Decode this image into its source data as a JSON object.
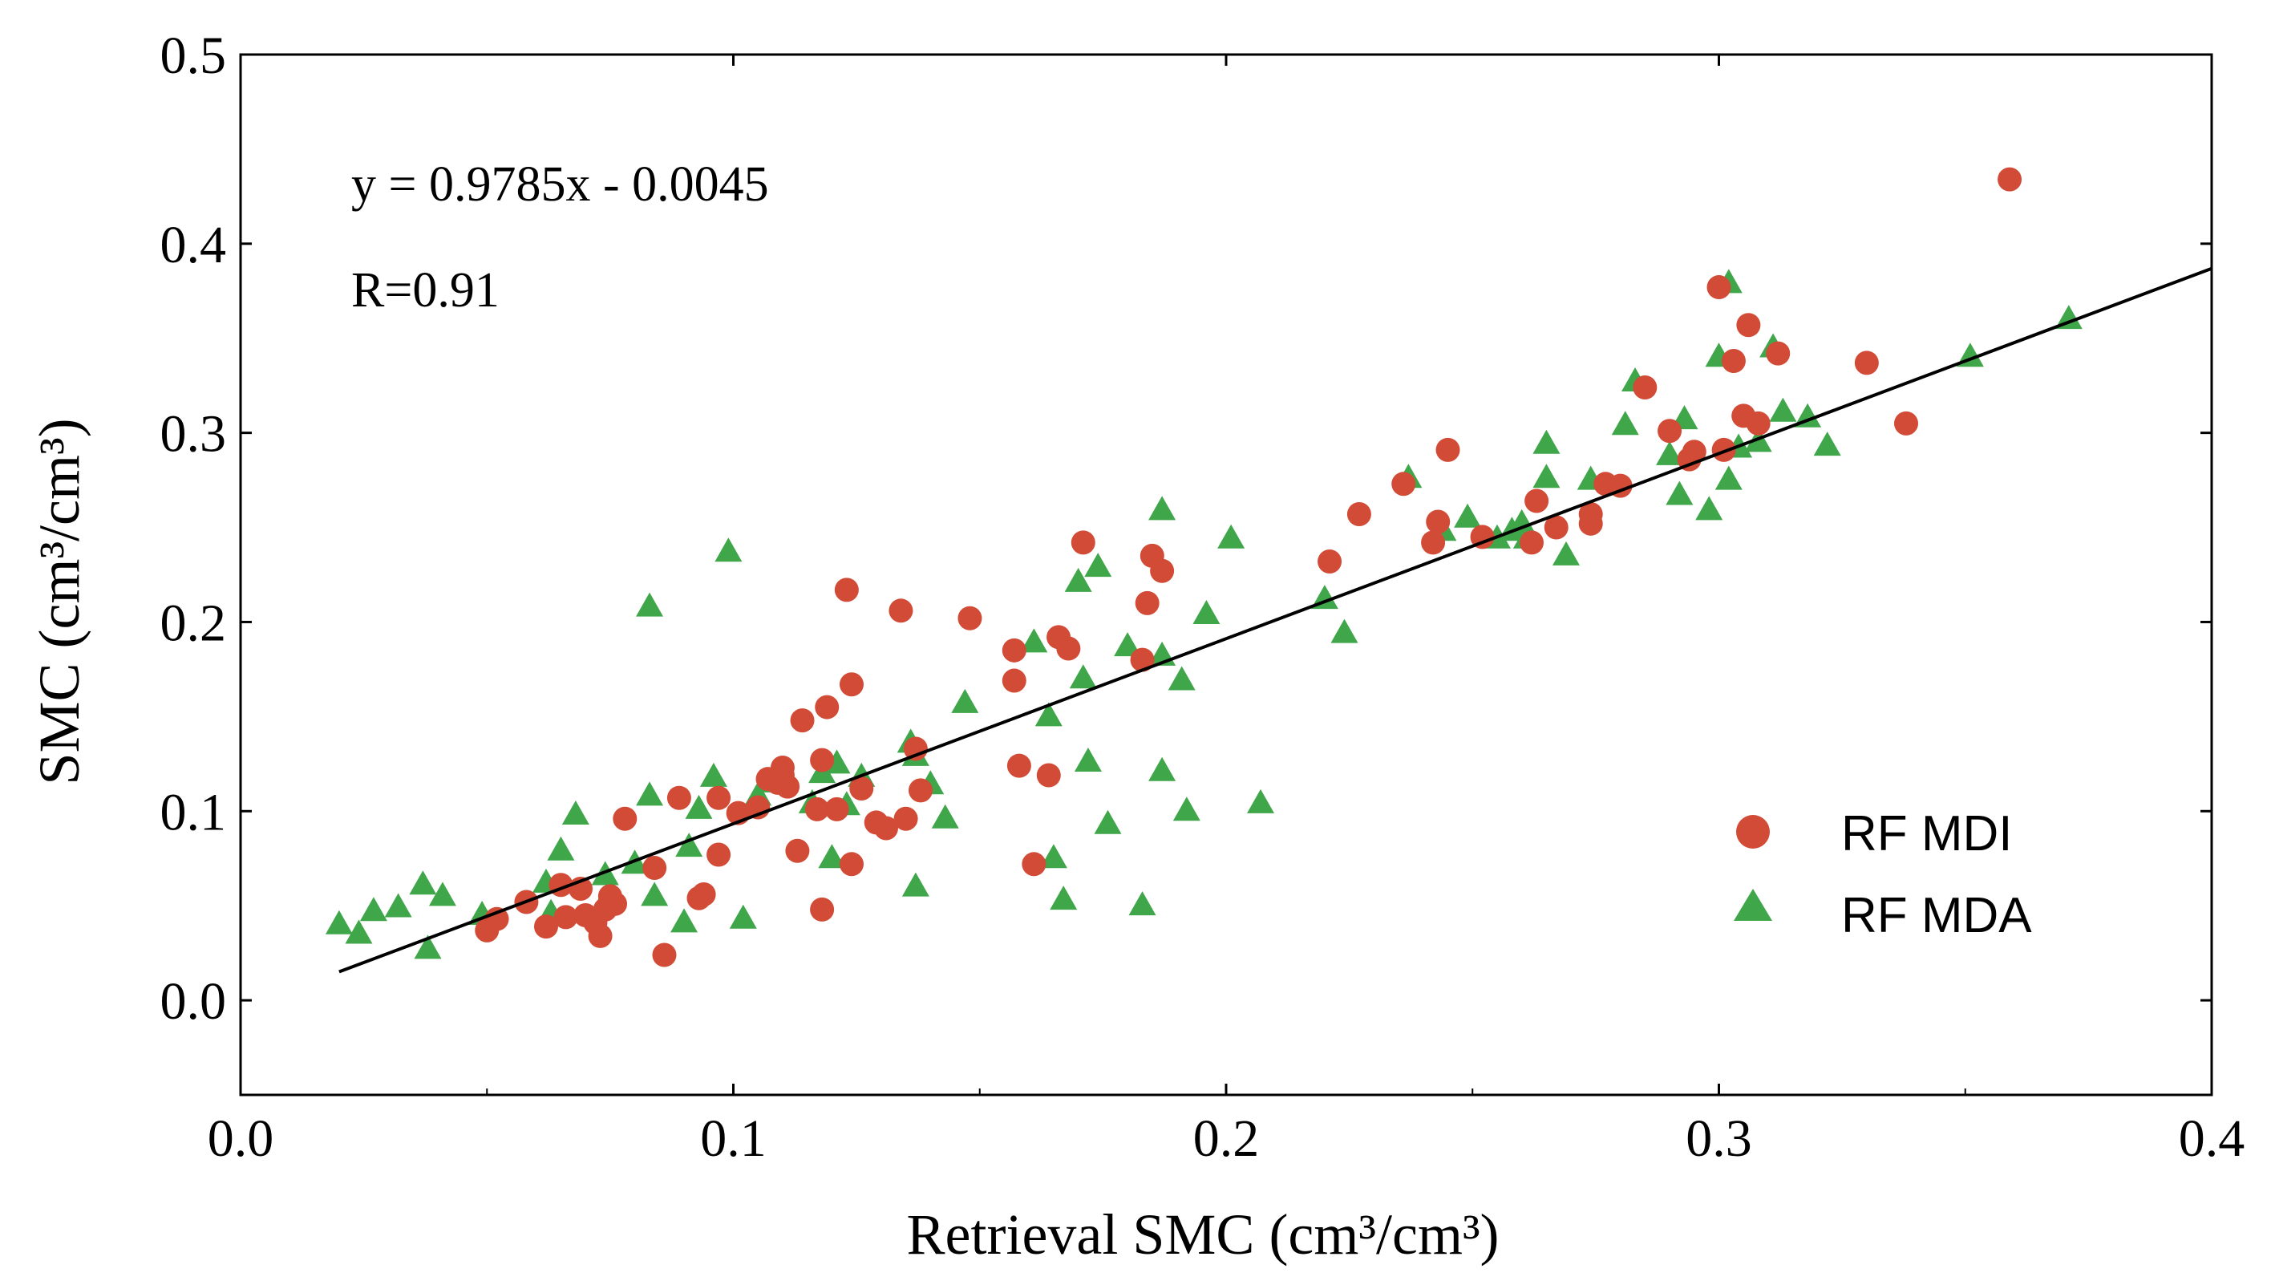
{
  "chart_data": {
    "type": "scatter",
    "title": "",
    "xlabel": "Retrieval SMC (cm³/cm³)",
    "ylabel": "SMC (cm³/cm³)",
    "xlim": [
      0.0,
      0.4
    ],
    "ylim": [
      -0.05,
      0.5
    ],
    "xticks": [
      0.0,
      0.1,
      0.2,
      0.3,
      0.4
    ],
    "yticks": [
      0.0,
      0.1,
      0.2,
      0.3,
      0.4,
      0.5
    ],
    "xtick_labels": [
      "0.0",
      "0.1",
      "0.2",
      "0.3",
      "0.4"
    ],
    "ytick_labels": [
      "0.0",
      "0.1",
      "0.2",
      "0.3",
      "0.4",
      "0.5"
    ],
    "grid": false,
    "legend_position": "bottom-right",
    "annotations": {
      "equation": "y = 0.9785x - 0.0045",
      "r_value": "R=0.91"
    },
    "fit_line": {
      "slope": 0.9785,
      "intercept": -0.0045,
      "x_range": [
        0.02,
        0.4
      ],
      "color": "#000000"
    },
    "series": [
      {
        "name": "RF MDI",
        "marker": "circle",
        "color": "#d24b36",
        "points": [
          [
            0.05,
            0.037
          ],
          [
            0.052,
            0.043
          ],
          [
            0.058,
            0.052
          ],
          [
            0.062,
            0.039
          ],
          [
            0.065,
            0.061
          ],
          [
            0.066,
            0.044
          ],
          [
            0.069,
            0.059
          ],
          [
            0.07,
            0.045
          ],
          [
            0.072,
            0.041
          ],
          [
            0.073,
            0.034
          ],
          [
            0.074,
            0.048
          ],
          [
            0.075,
            0.055
          ],
          [
            0.076,
            0.051
          ],
          [
            0.078,
            0.096
          ],
          [
            0.084,
            0.07
          ],
          [
            0.086,
            0.024
          ],
          [
            0.089,
            0.107
          ],
          [
            0.093,
            0.054
          ],
          [
            0.094,
            0.056
          ],
          [
            0.097,
            0.077
          ],
          [
            0.097,
            0.107
          ],
          [
            0.101,
            0.099
          ],
          [
            0.105,
            0.102
          ],
          [
            0.107,
            0.117
          ],
          [
            0.109,
            0.115
          ],
          [
            0.11,
            0.119
          ],
          [
            0.11,
            0.123
          ],
          [
            0.111,
            0.113
          ],
          [
            0.113,
            0.079
          ],
          [
            0.114,
            0.148
          ],
          [
            0.117,
            0.101
          ],
          [
            0.118,
            0.127
          ],
          [
            0.118,
            0.048
          ],
          [
            0.119,
            0.155
          ],
          [
            0.121,
            0.101
          ],
          [
            0.123,
            0.217
          ],
          [
            0.124,
            0.072
          ],
          [
            0.124,
            0.167
          ],
          [
            0.126,
            0.112
          ],
          [
            0.129,
            0.094
          ],
          [
            0.131,
            0.091
          ],
          [
            0.134,
            0.206
          ],
          [
            0.135,
            0.096
          ],
          [
            0.137,
            0.133
          ],
          [
            0.138,
            0.111
          ],
          [
            0.148,
            0.202
          ],
          [
            0.157,
            0.169
          ],
          [
            0.157,
            0.185
          ],
          [
            0.158,
            0.124
          ],
          [
            0.161,
            0.072
          ],
          [
            0.164,
            0.119
          ],
          [
            0.166,
            0.192
          ],
          [
            0.168,
            0.186
          ],
          [
            0.171,
            0.242
          ],
          [
            0.183,
            0.18
          ],
          [
            0.184,
            0.21
          ],
          [
            0.185,
            0.235
          ],
          [
            0.187,
            0.227
          ],
          [
            0.221,
            0.232
          ],
          [
            0.227,
            0.257
          ],
          [
            0.236,
            0.273
          ],
          [
            0.242,
            0.242
          ],
          [
            0.243,
            0.253
          ],
          [
            0.245,
            0.291
          ],
          [
            0.252,
            0.245
          ],
          [
            0.262,
            0.242
          ],
          [
            0.263,
            0.264
          ],
          [
            0.267,
            0.25
          ],
          [
            0.274,
            0.252
          ],
          [
            0.274,
            0.257
          ],
          [
            0.277,
            0.273
          ],
          [
            0.28,
            0.272
          ],
          [
            0.285,
            0.324
          ],
          [
            0.29,
            0.301
          ],
          [
            0.294,
            0.286
          ],
          [
            0.295,
            0.29
          ],
          [
            0.3,
            0.377
          ],
          [
            0.301,
            0.291
          ],
          [
            0.303,
            0.338
          ],
          [
            0.305,
            0.309
          ],
          [
            0.306,
            0.357
          ],
          [
            0.308,
            0.305
          ],
          [
            0.312,
            0.342
          ],
          [
            0.33,
            0.337
          ],
          [
            0.338,
            0.305
          ],
          [
            0.359,
            0.434
          ]
        ]
      },
      {
        "name": "RF MDA",
        "marker": "triangle",
        "color": "#3fa64a",
        "points": [
          [
            0.02,
            0.04
          ],
          [
            0.024,
            0.035
          ],
          [
            0.027,
            0.047
          ],
          [
            0.032,
            0.049
          ],
          [
            0.037,
            0.061
          ],
          [
            0.038,
            0.027
          ],
          [
            0.041,
            0.055
          ],
          [
            0.049,
            0.045
          ],
          [
            0.062,
            0.062
          ],
          [
            0.063,
            0.046
          ],
          [
            0.065,
            0.079
          ],
          [
            0.068,
            0.098
          ],
          [
            0.074,
            0.066
          ],
          [
            0.075,
            0.057
          ],
          [
            0.08,
            0.072
          ],
          [
            0.083,
            0.108
          ],
          [
            0.083,
            0.208
          ],
          [
            0.084,
            0.055
          ],
          [
            0.09,
            0.041
          ],
          [
            0.091,
            0.081
          ],
          [
            0.093,
            0.101
          ],
          [
            0.096,
            0.118
          ],
          [
            0.099,
            0.237
          ],
          [
            0.102,
            0.043
          ],
          [
            0.105,
            0.108
          ],
          [
            0.108,
            0.115
          ],
          [
            0.116,
            0.104
          ],
          [
            0.118,
            0.12
          ],
          [
            0.12,
            0.075
          ],
          [
            0.121,
            0.125
          ],
          [
            0.123,
            0.103
          ],
          [
            0.126,
            0.118
          ],
          [
            0.136,
            0.136
          ],
          [
            0.137,
            0.06
          ],
          [
            0.137,
            0.129
          ],
          [
            0.14,
            0.114
          ],
          [
            0.143,
            0.096
          ],
          [
            0.147,
            0.157
          ],
          [
            0.161,
            0.189
          ],
          [
            0.164,
            0.15
          ],
          [
            0.165,
            0.075
          ],
          [
            0.167,
            0.053
          ],
          [
            0.17,
            0.221
          ],
          [
            0.171,
            0.17
          ],
          [
            0.172,
            0.126
          ],
          [
            0.174,
            0.229
          ],
          [
            0.176,
            0.093
          ],
          [
            0.18,
            0.187
          ],
          [
            0.183,
            0.05
          ],
          [
            0.187,
            0.259
          ],
          [
            0.187,
            0.182
          ],
          [
            0.187,
            0.121
          ],
          [
            0.191,
            0.169
          ],
          [
            0.192,
            0.1
          ],
          [
            0.196,
            0.204
          ],
          [
            0.201,
            0.244
          ],
          [
            0.207,
            0.104
          ],
          [
            0.22,
            0.212
          ],
          [
            0.224,
            0.194
          ],
          [
            0.237,
            0.276
          ],
          [
            0.244,
            0.248
          ],
          [
            0.249,
            0.255
          ],
          [
            0.255,
            0.244
          ],
          [
            0.258,
            0.248
          ],
          [
            0.26,
            0.252
          ],
          [
            0.261,
            0.244
          ],
          [
            0.265,
            0.276
          ],
          [
            0.265,
            0.294
          ],
          [
            0.269,
            0.235
          ],
          [
            0.274,
            0.275
          ],
          [
            0.281,
            0.304
          ],
          [
            0.283,
            0.327
          ],
          [
            0.29,
            0.288
          ],
          [
            0.292,
            0.267
          ],
          [
            0.293,
            0.307
          ],
          [
            0.298,
            0.259
          ],
          [
            0.3,
            0.34
          ],
          [
            0.302,
            0.379
          ],
          [
            0.302,
            0.275
          ],
          [
            0.304,
            0.292
          ],
          [
            0.308,
            0.295
          ],
          [
            0.311,
            0.345
          ],
          [
            0.313,
            0.311
          ],
          [
            0.318,
            0.308
          ],
          [
            0.322,
            0.293
          ],
          [
            0.351,
            0.34
          ],
          [
            0.371,
            0.36
          ]
        ]
      }
    ]
  }
}
